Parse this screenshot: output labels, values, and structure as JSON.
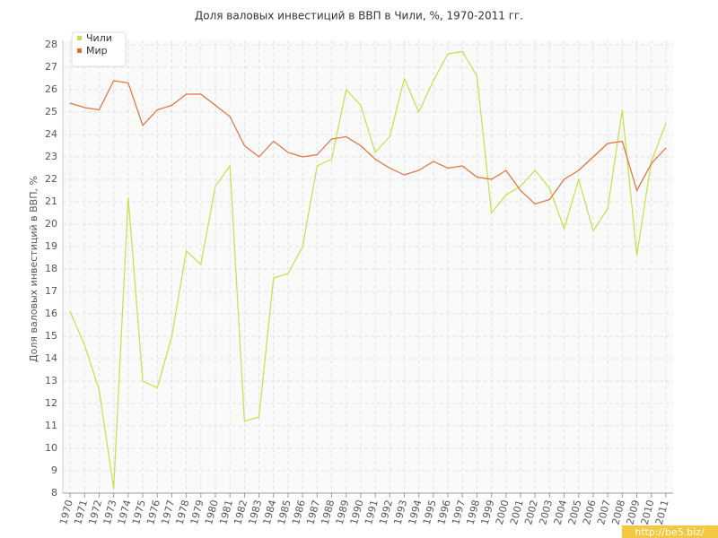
{
  "chart_data": {
    "type": "line",
    "title": "Доля валовых инвестиций в ВВП в Чили, %, 1970-2011 гг.",
    "y_label": "Доля валовых инвестиций в ВВП, %",
    "watermark": "http://be5.biz/",
    "x": [
      1970,
      1971,
      1972,
      1973,
      1974,
      1975,
      1976,
      1977,
      1978,
      1979,
      1980,
      1981,
      1982,
      1983,
      1984,
      1985,
      1986,
      1987,
      1988,
      1989,
      1990,
      1991,
      1992,
      1993,
      1994,
      1995,
      1996,
      1997,
      1998,
      1999,
      2000,
      2001,
      2002,
      2003,
      2004,
      2005,
      2006,
      2007,
      2008,
      2009,
      2010,
      2011
    ],
    "series": [
      {
        "name": "Чили",
        "color": "#c5e04a",
        "values": [
          16.1,
          14.6,
          12.6,
          8.2,
          21.2,
          13.0,
          12.7,
          15.0,
          18.8,
          18.2,
          21.7,
          22.6,
          11.2,
          11.4,
          17.6,
          17.8,
          19.0,
          22.6,
          22.9,
          26.0,
          25.3,
          23.2,
          23.9,
          26.5,
          25.0,
          26.4,
          27.6,
          27.7,
          26.6,
          20.5,
          21.3,
          21.7,
          22.4,
          21.6,
          19.8,
          22.0,
          19.7,
          20.7,
          25.1,
          18.6,
          22.8,
          24.5
        ]
      },
      {
        "name": "Мир",
        "color": "#e0703a",
        "values": [
          25.4,
          25.2,
          25.1,
          26.4,
          26.3,
          24.4,
          25.1,
          25.3,
          25.8,
          25.8,
          25.3,
          24.8,
          23.5,
          23.0,
          23.7,
          23.2,
          23.0,
          23.1,
          23.8,
          23.9,
          23.5,
          22.9,
          22.5,
          22.2,
          22.4,
          22.8,
          22.5,
          22.6,
          22.1,
          22.0,
          22.4,
          21.5,
          20.9,
          21.1,
          22.0,
          22.4,
          23.0,
          23.6,
          23.7,
          21.5,
          22.7,
          23.4
        ]
      }
    ],
    "xlim": [
      1969.5,
      2011.5
    ],
    "xticks": [
      1970,
      1971,
      1972,
      1973,
      1974,
      1975,
      1976,
      1977,
      1978,
      1979,
      1980,
      1981,
      1982,
      1983,
      1984,
      1985,
      1986,
      1987,
      1988,
      1989,
      1990,
      1991,
      1992,
      1993,
      1994,
      1995,
      1996,
      1997,
      1998,
      1999,
      2000,
      2001,
      2002,
      2003,
      2004,
      2005,
      2006,
      2007,
      2008,
      2009,
      2010,
      2011
    ],
    "ylim": [
      8,
      28
    ],
    "yticks": [
      8,
      9,
      10,
      11,
      12,
      13,
      14,
      15,
      16,
      17,
      18,
      19,
      20,
      21,
      22,
      23,
      24,
      25,
      26,
      27,
      28
    ],
    "grid": true,
    "legend": "top-left"
  }
}
